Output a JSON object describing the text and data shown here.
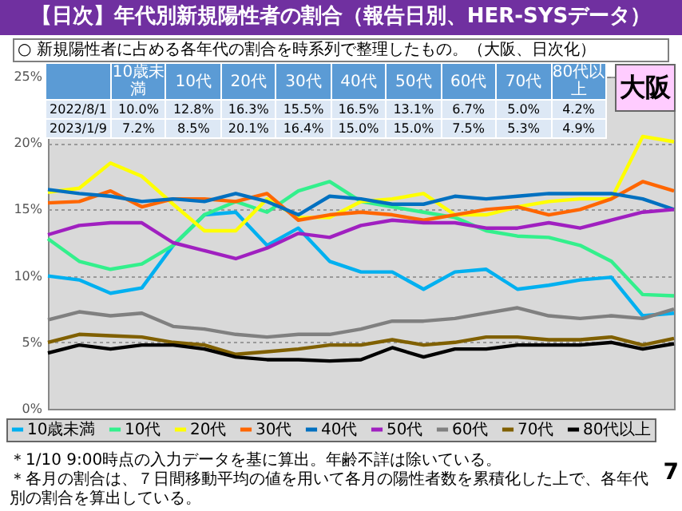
{
  "chart_data": {
    "type": "line",
    "title": "【日次】年代別新規陽性者の割合（報告日別、HER-SYSデータ）",
    "subtitle": "○ 新規陽性者に占める各年代の割合を時系列で整理したもの。（大阪、日次化）",
    "categories": [
      null,
      null,
      null,
      null,
      null,
      null,
      null,
      null,
      null,
      null,
      null,
      null,
      null,
      null,
      null,
      null,
      null,
      null,
      null,
      null,
      null
    ],
    "series": [
      {
        "name": "10歳未満",
        "color": "#00b0f0",
        "values": [
          10.0,
          9.7,
          8.7,
          9.1,
          12.3,
          14.6,
          14.8,
          12.3,
          13.6,
          11.1,
          10.3,
          10.3,
          9.0,
          10.3,
          10.5,
          9.0,
          9.3,
          9.7,
          9.9,
          7.0,
          7.2
        ]
      },
      {
        "name": "10代",
        "color": "#33f08c",
        "values": [
          12.8,
          11.1,
          10.5,
          10.9,
          12.3,
          14.6,
          15.6,
          14.8,
          16.4,
          17.1,
          15.6,
          15.2,
          14.8,
          14.4,
          13.4,
          13.0,
          12.9,
          12.3,
          11.1,
          8.6,
          8.5
        ]
      },
      {
        "name": "20代",
        "color": "#ffff00",
        "values": [
          16.3,
          16.6,
          18.5,
          17.5,
          15.4,
          13.4,
          13.4,
          15.8,
          14.4,
          14.4,
          15.6,
          15.8,
          16.2,
          14.6,
          14.6,
          15.2,
          15.6,
          15.8,
          15.8,
          20.5,
          20.1
        ]
      },
      {
        "name": "30代",
        "color": "#ff6600",
        "values": [
          15.5,
          15.6,
          16.4,
          15.2,
          15.8,
          15.8,
          15.6,
          16.2,
          14.2,
          14.6,
          14.8,
          14.6,
          14.2,
          14.6,
          15.0,
          15.2,
          14.6,
          15.0,
          15.8,
          17.1,
          16.4
        ]
      },
      {
        "name": "40代",
        "color": "#0070c0",
        "values": [
          16.5,
          16.2,
          16.0,
          15.6,
          15.8,
          15.6,
          16.2,
          15.6,
          14.6,
          16.0,
          15.8,
          15.4,
          15.4,
          16.0,
          15.8,
          16.0,
          16.2,
          16.2,
          16.2,
          15.8,
          15.0
        ]
      },
      {
        "name": "50代",
        "color": "#a020c0",
        "values": [
          13.1,
          13.8,
          14.0,
          14.0,
          12.5,
          11.9,
          11.3,
          12.1,
          13.2,
          12.9,
          13.8,
          14.2,
          14.0,
          14.0,
          13.6,
          13.6,
          14.0,
          13.6,
          14.2,
          14.8,
          15.0
        ]
      },
      {
        "name": "60代",
        "color": "#808080",
        "values": [
          6.7,
          7.3,
          7.0,
          7.2,
          6.2,
          6.0,
          5.6,
          5.4,
          5.6,
          5.6,
          6.0,
          6.6,
          6.6,
          6.8,
          7.2,
          7.6,
          7.0,
          6.8,
          7.0,
          6.8,
          7.5
        ]
      },
      {
        "name": "70代",
        "color": "#806000",
        "values": [
          5.0,
          5.6,
          5.5,
          5.4,
          5.0,
          4.8,
          4.1,
          4.3,
          4.5,
          4.8,
          4.8,
          5.2,
          4.8,
          5.0,
          5.4,
          5.4,
          5.2,
          5.2,
          5.4,
          4.8,
          5.3
        ]
      },
      {
        "name": "80代以上",
        "color": "#000000",
        "values": [
          4.2,
          4.8,
          4.5,
          4.8,
          4.8,
          4.5,
          3.9,
          3.7,
          3.7,
          3.6,
          3.7,
          4.6,
          3.9,
          4.5,
          4.5,
          4.8,
          4.8,
          4.8,
          5.0,
          4.5,
          4.9
        ]
      }
    ],
    "ylim": [
      0,
      25
    ],
    "yticks": [
      {
        "value": 0,
        "label": "0%"
      },
      {
        "value": 5,
        "label": "5%"
      },
      {
        "value": 10,
        "label": "10%"
      },
      {
        "value": 15,
        "label": "15%"
      },
      {
        "value": 20,
        "label": "20%"
      },
      {
        "value": 25,
        "label": "25%"
      }
    ],
    "tick_labels": "y",
    "grid": "y",
    "legend": "bottom",
    "annotations": [
      "2022/8/1",
      "10.0%",
      "12.8%",
      "16.3%",
      "15.5%",
      "16.5%",
      "13.1%",
      "6.7%",
      "5.0%",
      "4.2%",
      "2023/1/9",
      "7.2%",
      "8.5%",
      "20.1%",
      "16.4%",
      "15.0%",
      "15.0%",
      "7.5%",
      "5.3%",
      "4.9%",
      "大阪",
      "＊1/10 9:00時点の入力データを基に算出。年齢不詳は除いている。",
      "＊各月の割合は、７日間移動平均の値を用いて各月の陽性者数を累積化した上で、各年代別の割合を算出している。",
      "7"
    ]
  }
}
